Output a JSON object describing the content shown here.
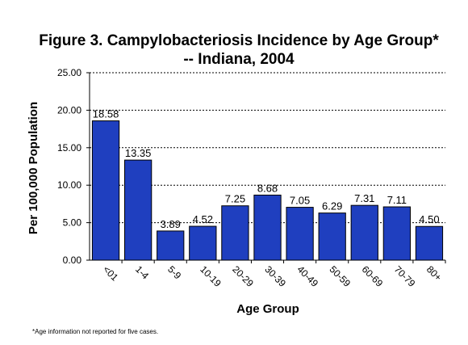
{
  "chart_data": {
    "type": "bar",
    "title_line1": "Figure 3.  Campylobacteriosis Incidence by Age Group*",
    "title_line2": "-- Indiana, 2004",
    "xlabel": "Age Group",
    "ylabel": "Per 100,000 Population",
    "ylim": [
      0,
      25
    ],
    "yticks": [
      "0.00",
      "5.00",
      "10.00",
      "15.00",
      "20.00",
      "25.00"
    ],
    "categories": [
      "<01",
      "1-4",
      "5-9",
      "10-19",
      "20-29",
      "30-39",
      "40-49",
      "50-59",
      "60-69",
      "70-79",
      "80+"
    ],
    "values": [
      18.58,
      13.35,
      3.89,
      4.52,
      7.25,
      8.68,
      7.05,
      6.29,
      7.31,
      7.11,
      4.5
    ],
    "value_labels": [
      "18.58",
      "13.35",
      "3.89",
      "4.52",
      "7.25",
      "8.68",
      "7.05",
      "6.29",
      "7.31",
      "7.11",
      "4.50"
    ],
    "grid": "horizontal dotted",
    "bar_color": "#1F3FBF"
  },
  "footnote": "*Age information not reported for five cases."
}
